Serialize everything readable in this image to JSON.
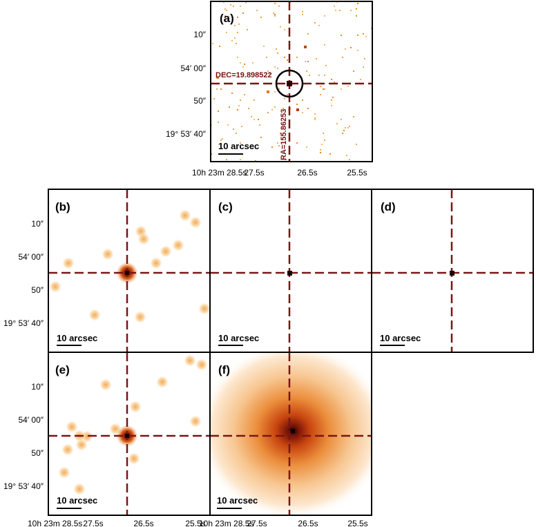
{
  "figure": {
    "panels": [
      {
        "id": "a",
        "label": "(a)",
        "scalebar": "10 arcsec",
        "kind": "sparse",
        "dec_label": "DEC=19.898522",
        "ra_label": "RA=155.86253"
      },
      {
        "id": "b",
        "label": "(b)",
        "scalebar": "10 arcsec",
        "kind": "blobs"
      },
      {
        "id": "c",
        "label": "(c)",
        "scalebar": "10 arcsec",
        "kind": "point"
      },
      {
        "id": "d",
        "label": "(d)",
        "scalebar": "10 arcsec",
        "kind": "point"
      },
      {
        "id": "e",
        "label": "(e)",
        "scalebar": "10 arcsec",
        "kind": "blobs"
      },
      {
        "id": "f",
        "label": "(f)",
        "scalebar": "10 arcsec",
        "kind": "diffuse"
      }
    ],
    "yticks": [
      "10″",
      "54′ 00″",
      "50″",
      "19° 53′ 40″"
    ],
    "xticks_top": [
      "10h 23m 28.5s",
      "27.5s",
      "26.5s",
      "25.5s"
    ],
    "xticks_e": [
      "10h 23m 28.5s",
      "27.5s",
      "26.5s",
      "25.5s"
    ],
    "xticks_f": [
      "10h 23m 28.5s",
      "27.5s",
      "26.5s",
      "25.5s"
    ],
    "colors": {
      "crosshair": "#7a1414",
      "peak": "#1a0000",
      "hot": "#c0400c",
      "mid": "#e8821e",
      "faint": "#fbe0b8"
    }
  }
}
